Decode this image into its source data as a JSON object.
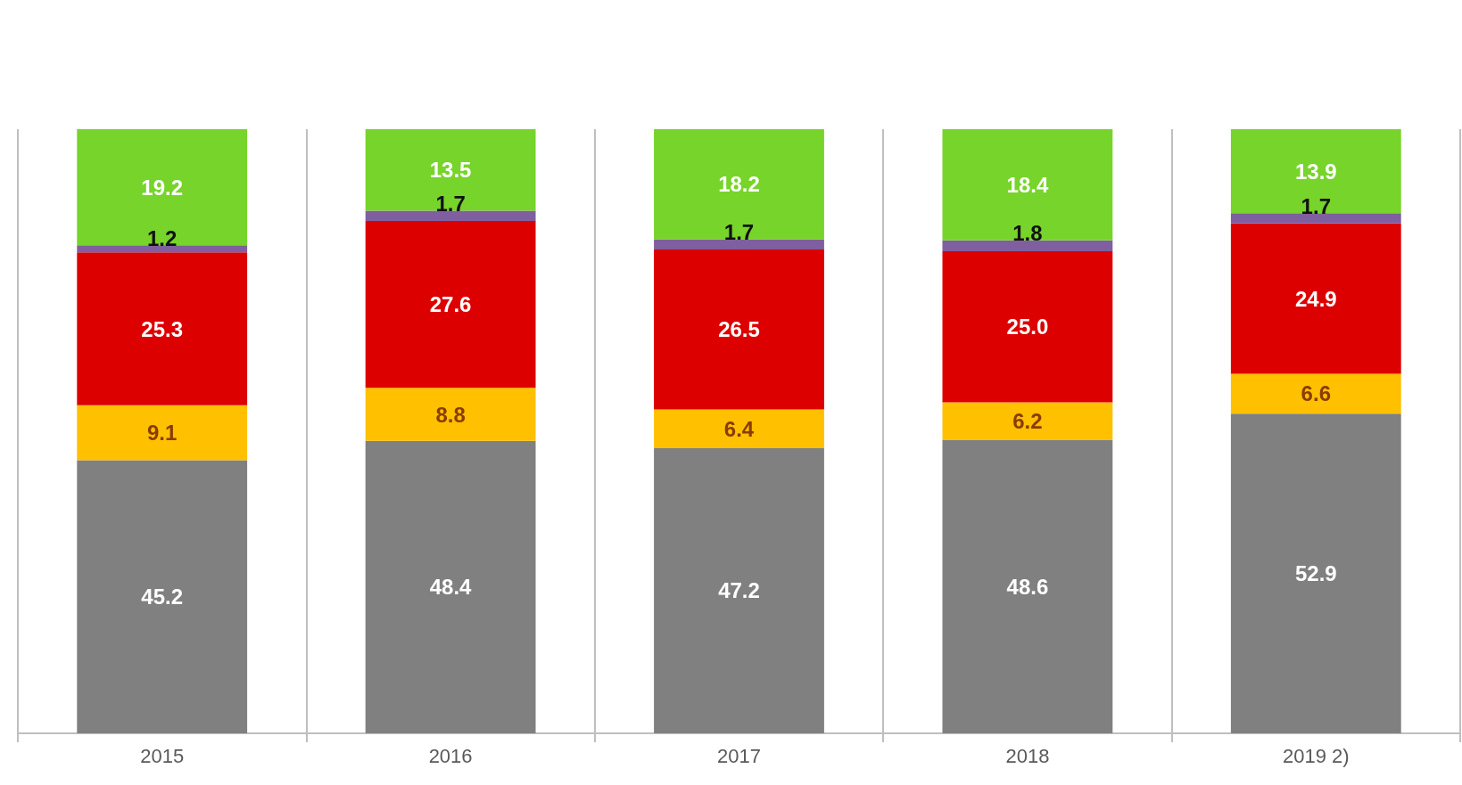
{
  "chart_data": {
    "type": "bar",
    "stacked": true,
    "grid": "x",
    "tick_labels": "x",
    "categories": [
      "2015",
      "2016",
      "2017",
      "2018",
      "2019 2)"
    ],
    "series": [
      {
        "color": "#808080",
        "values": [
          45.2,
          48.4,
          47.2,
          48.6,
          52.9
        ],
        "value_labels": [
          "45.2",
          "48.4",
          "47.2",
          "48.6",
          "52.9"
        ]
      },
      {
        "color": "#ffc000",
        "values": [
          9.1,
          8.8,
          6.4,
          6.2,
          6.6
        ],
        "value_labels": [
          "9.1",
          "8.8",
          "6.4",
          "6.2",
          "6.6"
        ]
      },
      {
        "color": "#dd0000",
        "values": [
          25.3,
          27.6,
          26.5,
          25.0,
          24.9
        ],
        "value_labels": [
          "25.3",
          "27.6",
          "26.5",
          "25.0",
          "24.9"
        ]
      },
      {
        "color": "#7f5f9f",
        "values": [
          1.2,
          1.7,
          1.7,
          1.8,
          1.7
        ],
        "value_labels": [
          "1.2",
          "1.7",
          "1.7",
          "1.8",
          "1.7"
        ]
      },
      {
        "color": "#77d42a",
        "values": [
          19.2,
          13.5,
          18.2,
          18.4,
          13.9
        ],
        "value_labels": [
          "19.2",
          "13.5",
          "18.2",
          "18.4",
          "13.9"
        ]
      }
    ]
  }
}
